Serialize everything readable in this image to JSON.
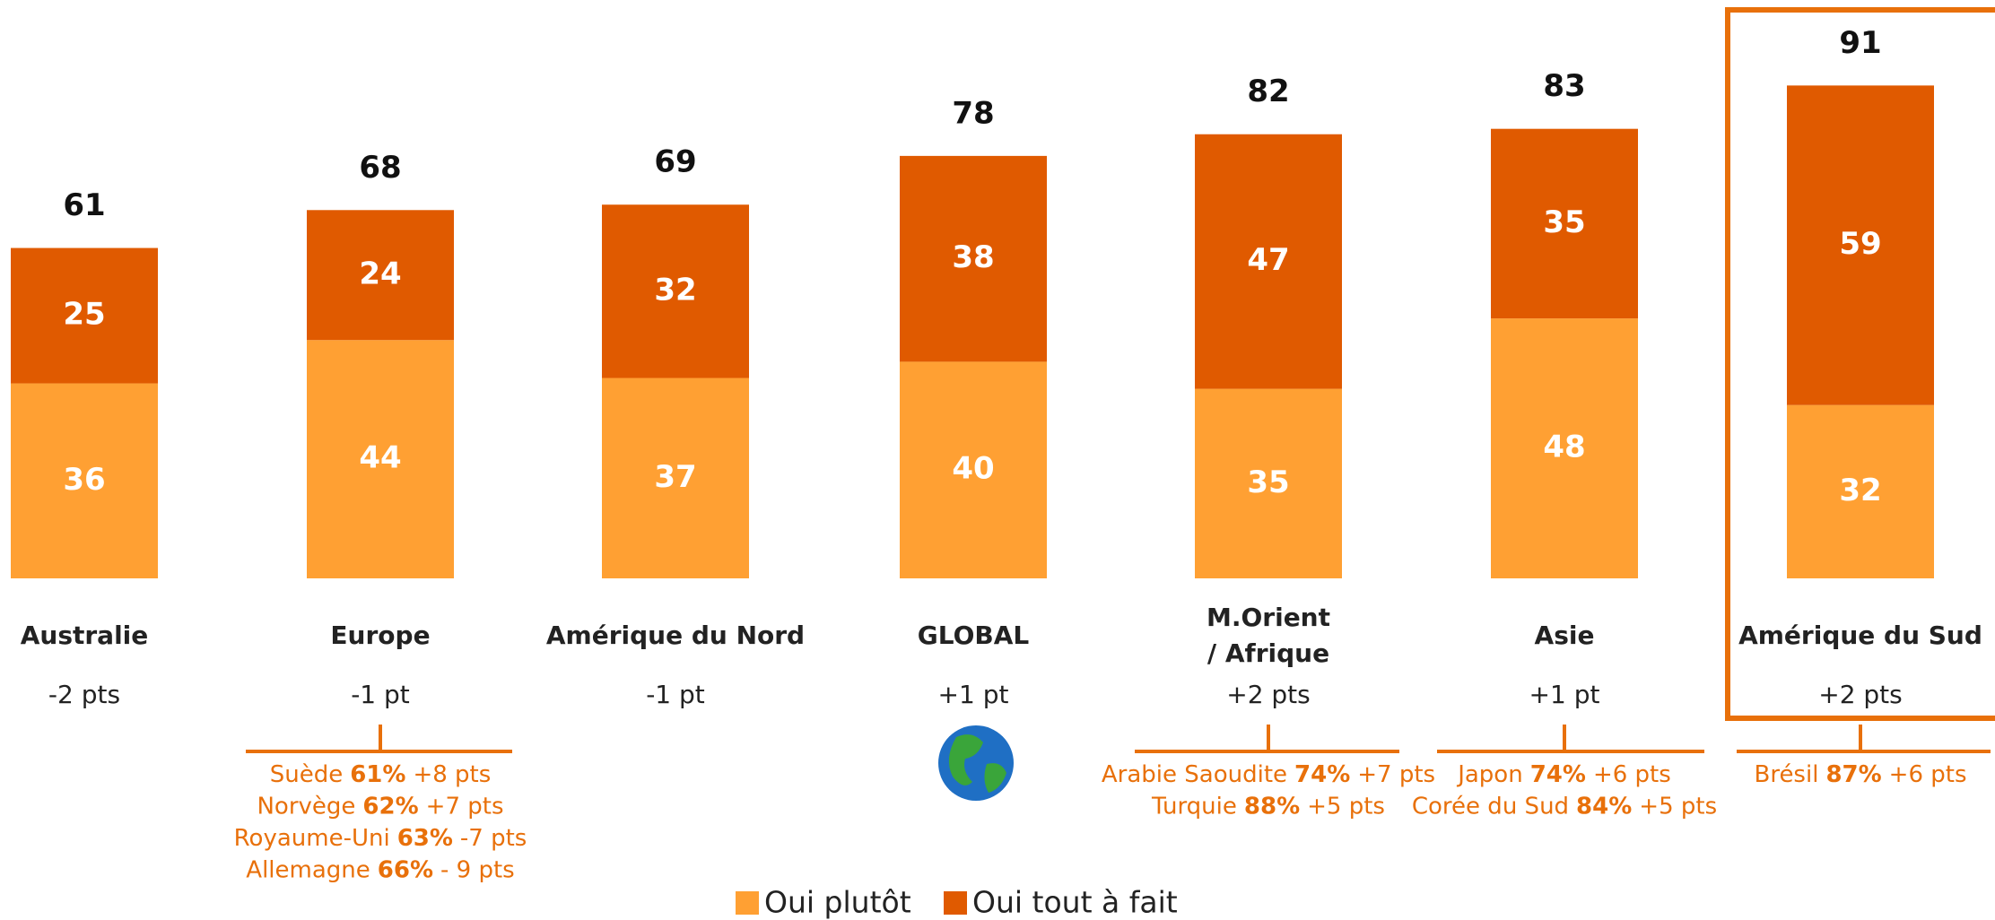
{
  "chart_data": {
    "type": "stacked_bar",
    "categories": [
      "Australie",
      "Europe",
      "Amérique du Nord",
      "GLOBAL",
      "M.Orient\n/ Afrique",
      "Asie",
      "Amérique du Sud"
    ],
    "series": [
      {
        "name": "Oui plutôt",
        "color": "#FFA033",
        "values": [
          36,
          44,
          37,
          40,
          35,
          48,
          32
        ]
      },
      {
        "name": "Oui tout à fait",
        "color": "#E05A00",
        "values": [
          25,
          24,
          32,
          38,
          47,
          35,
          59
        ]
      }
    ],
    "totals": [
      61,
      68,
      69,
      78,
      82,
      83,
      91
    ],
    "changes": [
      "-2 pts",
      "-1 pt",
      "-1 pt",
      "+1 pt",
      "+2 pts",
      "+1 pt",
      "+2 pts"
    ],
    "details": [
      [],
      [
        {
          "name": "Suède",
          "share": "61%",
          "change": "+8 pts"
        },
        {
          "name": "Norvège",
          "share": "62%",
          "change": "+7 pts"
        },
        {
          "name": "Royaume-Uni",
          "share": "63%",
          "change": "-7 pts"
        },
        {
          "name": "Allemagne",
          "share": "66%",
          "change": "- 9 pts"
        }
      ],
      [],
      [],
      [
        {
          "name": "Arabie Saoudite",
          "share": "74%",
          "change": "+7 pts"
        },
        {
          "name": "Turquie",
          "share": "88%",
          "change": "+5 pts"
        }
      ],
      [
        {
          "name": "Japon",
          "share": "74%",
          "change": "+6 pts"
        },
        {
          "name": "Corée du Sud",
          "share": "84%",
          "change": "+5 pts"
        }
      ],
      [
        {
          "name": "Brésil",
          "share": "87%",
          "change": "+6 pts"
        }
      ]
    ],
    "ylim": [
      0,
      100
    ],
    "highlight_index": 6,
    "detail_color": "#E8700A"
  }
}
